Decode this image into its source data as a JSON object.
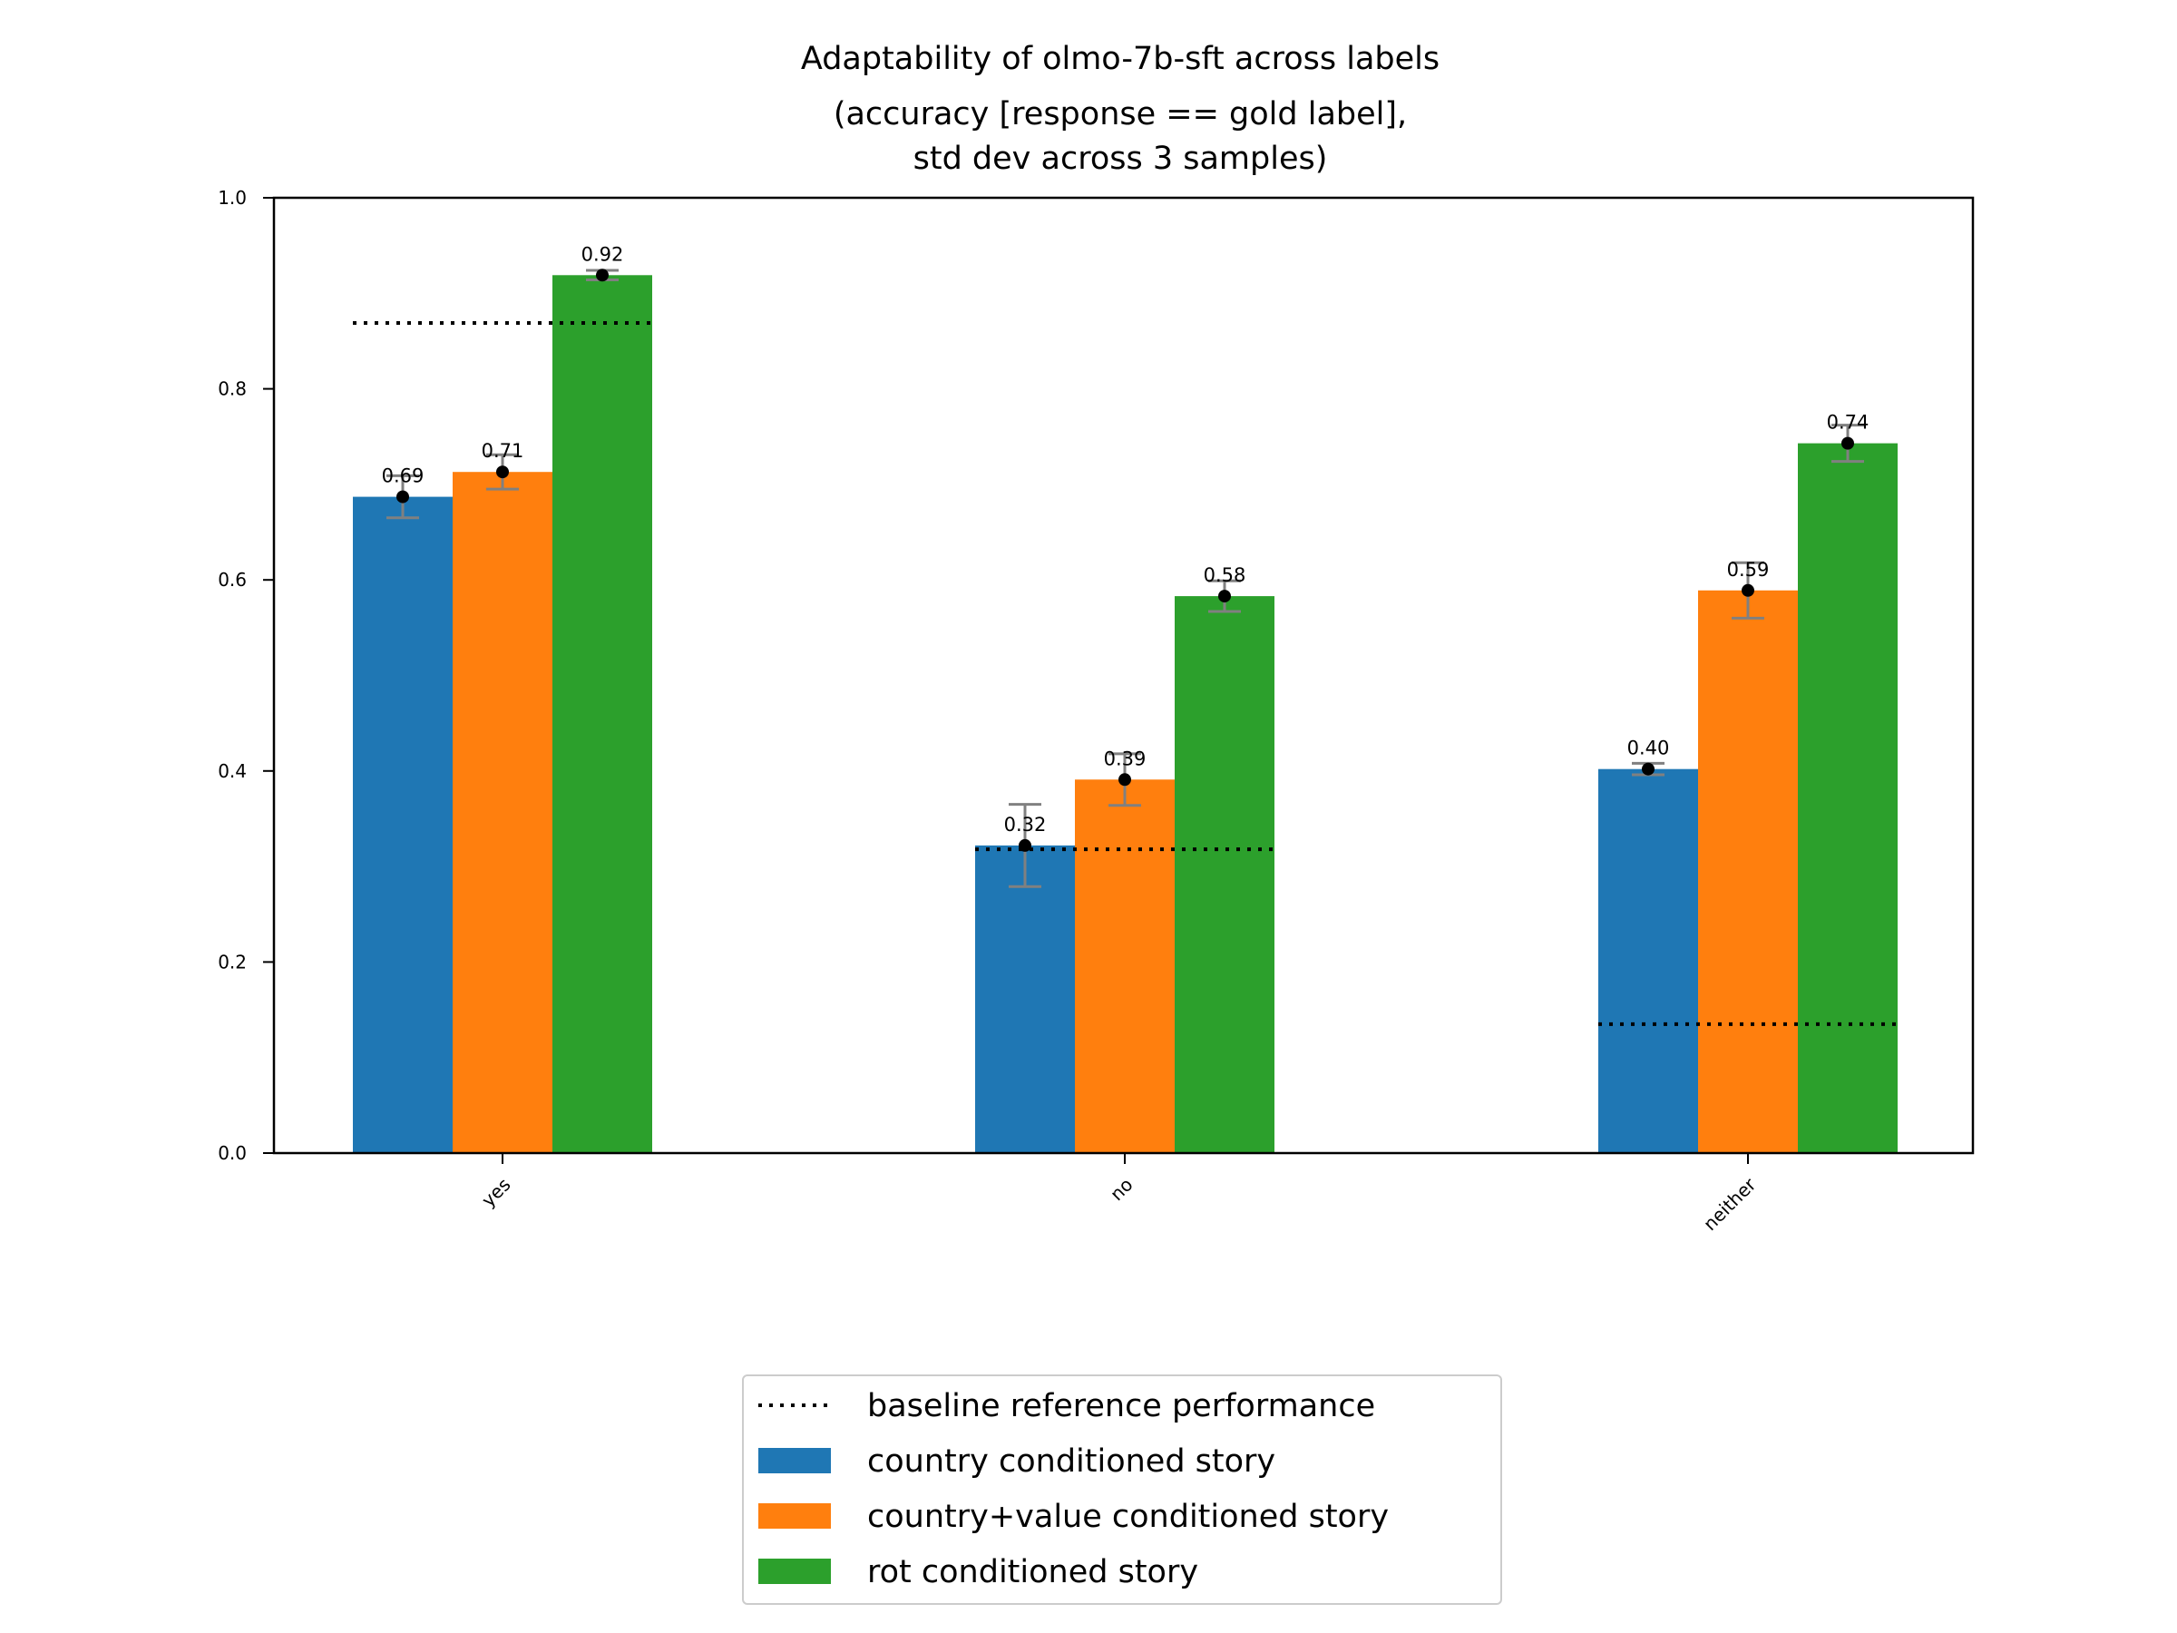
{
  "chart_data": {
    "type": "bar",
    "title_lines": [
      "Adaptability of olmo-7b-sft across labels",
      "(accuracy [response == gold label],",
      "std dev across 3 samples)"
    ],
    "xlabel": "",
    "ylabel": "",
    "categories": [
      "yes",
      "no",
      "neither"
    ],
    "ylim": [
      0.0,
      1.0
    ],
    "yticks": [
      0.0,
      0.2,
      0.4,
      0.6,
      0.8,
      1.0
    ],
    "ytick_labels": [
      "0.0",
      "0.2",
      "0.4",
      "0.6",
      "0.8",
      "1.0"
    ],
    "series": [
      {
        "name": "country conditioned story",
        "color": "#1f77b4",
        "values": [
          0.687,
          0.322,
          0.402
        ],
        "errors": [
          0.022,
          0.043,
          0.006
        ],
        "labels": [
          "0.69",
          "0.32",
          "0.40"
        ]
      },
      {
        "name": "country+value conditioned story",
        "color": "#ff7f0e",
        "values": [
          0.713,
          0.391,
          0.589
        ],
        "errors": [
          0.018,
          0.027,
          0.029
        ],
        "labels": [
          "0.71",
          "0.39",
          "0.59"
        ]
      },
      {
        "name": "rot conditioned story",
        "color": "#2ca02c",
        "values": [
          0.919,
          0.583,
          0.743
        ],
        "errors": [
          0.005,
          0.016,
          0.019
        ],
        "labels": [
          "0.92",
          "0.58",
          "0.74"
        ]
      }
    ],
    "baseline": {
      "name": "baseline reference performance",
      "values": [
        0.869,
        0.318,
        0.135
      ]
    },
    "legend_position": "bottom-center",
    "grid": false
  }
}
